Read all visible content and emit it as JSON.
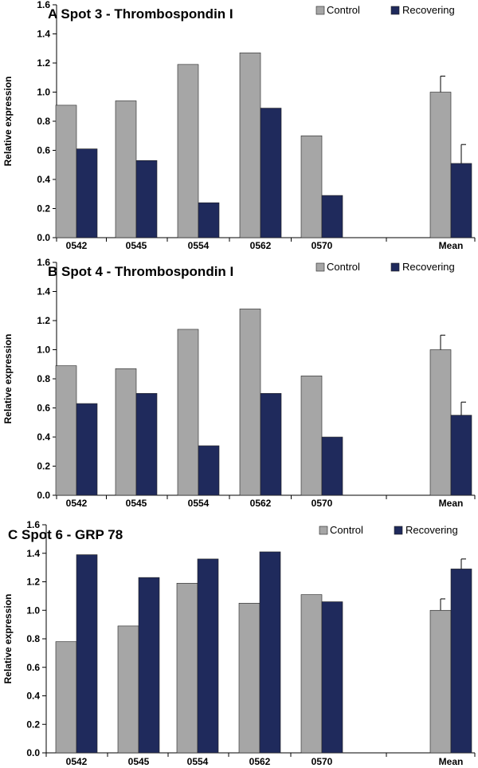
{
  "colors": {
    "control": "#a6a6a6",
    "recovering": "#1f2a5c"
  },
  "chart_data": [
    {
      "type": "bar",
      "panel": "A",
      "title": "Spot 3 - Thrombospondin I",
      "ylabel": "Relative expression",
      "xlabel": "",
      "ylim": [
        0,
        1.6
      ],
      "yticks": [
        "0.0",
        "0.2",
        "0.4",
        "0.6",
        "0.8",
        "1.0",
        "1.2",
        "1.4",
        "1.6"
      ],
      "categories": [
        "0542",
        "0545",
        "0554",
        "0562",
        "0570",
        "Mean"
      ],
      "legend_position": "top-right",
      "series": [
        {
          "name": "Control",
          "values": [
            0.91,
            0.94,
            1.19,
            1.27,
            0.7,
            1.0
          ],
          "error": [
            null,
            null,
            null,
            null,
            null,
            0.11
          ]
        },
        {
          "name": "Recovering",
          "values": [
            0.61,
            0.53,
            0.24,
            0.89,
            0.29,
            0.51
          ],
          "error": [
            null,
            null,
            null,
            null,
            null,
            0.13
          ]
        }
      ]
    },
    {
      "type": "bar",
      "panel": "B",
      "title": "Spot 4 - Thrombospondin I",
      "ylabel": "Relative expression",
      "xlabel": "",
      "ylim": [
        0,
        1.6
      ],
      "yticks": [
        "0.0",
        "0.2",
        "0.4",
        "0.6",
        "0.8",
        "1.0",
        "1.2",
        "1.4",
        "1.6"
      ],
      "categories": [
        "0542",
        "0545",
        "0554",
        "0562",
        "0570",
        "Mean"
      ],
      "legend_position": "top-right",
      "series": [
        {
          "name": "Control",
          "values": [
            0.89,
            0.87,
            1.14,
            1.28,
            0.82,
            1.0
          ],
          "error": [
            null,
            null,
            null,
            null,
            null,
            0.1
          ]
        },
        {
          "name": "Recovering",
          "values": [
            0.63,
            0.7,
            0.34,
            0.7,
            0.4,
            0.55
          ],
          "error": [
            null,
            null,
            null,
            null,
            null,
            0.09
          ]
        }
      ]
    },
    {
      "type": "bar",
      "panel": "C",
      "title": "Spot 6 - GRP 78",
      "ylabel": "Relative expression",
      "xlabel": "",
      "ylim": [
        0,
        1.6
      ],
      "yticks": [
        "0.0",
        "0.2",
        "0.4",
        "0.6",
        "0.8",
        "1.0",
        "1.2",
        "1.4",
        "1.6"
      ],
      "categories": [
        "0542",
        "0545",
        "0554",
        "0562",
        "0570",
        "Mean"
      ],
      "legend_position": "top-right",
      "series": [
        {
          "name": "Control",
          "values": [
            0.78,
            0.89,
            1.19,
            1.05,
            1.11,
            1.0
          ],
          "error": [
            null,
            null,
            null,
            null,
            null,
            0.08
          ]
        },
        {
          "name": "Recovering",
          "values": [
            1.39,
            1.23,
            1.36,
            1.41,
            1.06,
            1.29
          ],
          "error": [
            null,
            null,
            null,
            null,
            null,
            0.07
          ]
        }
      ]
    }
  ]
}
